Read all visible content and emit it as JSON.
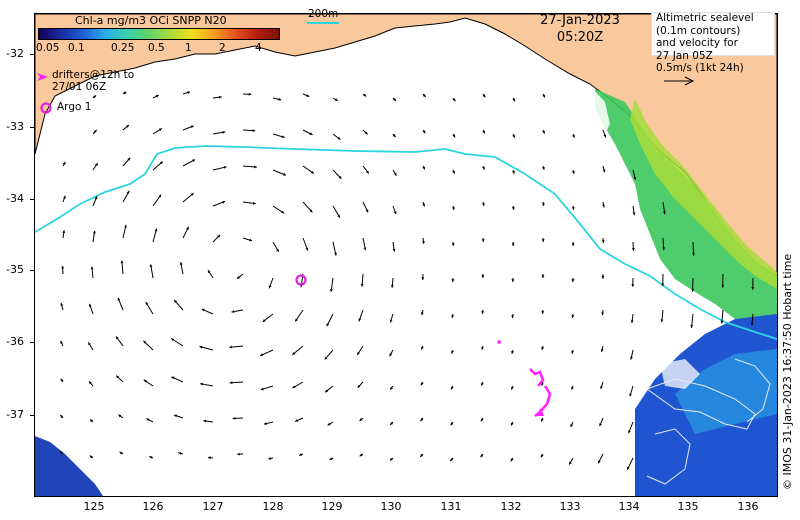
{
  "colorbar": {
    "title": "Chl-a mg/m3 OCi SNPP N20",
    "ticks": [
      "0.05",
      "0.1",
      "0.25",
      "0.5",
      "1",
      "2",
      "4"
    ]
  },
  "scale_label": "200m",
  "date": "27-Jan-2023",
  "time": "05:20Z",
  "legend": {
    "line1": "Altimetric sealevel",
    "line2": "(0.1m contours)",
    "line3": "and velocity for",
    "line4": "27 Jan 05Z",
    "line5": "0.5m/s (1kt 24h)"
  },
  "drifters_label_1": "drifters@12h to",
  "drifters_label_2": "27/01 06Z",
  "argo_label": "Argo 1",
  "credit": "© IMOS 31-Jan-2023 16:37:50 Hobart time",
  "y_axis": [
    "-32",
    "-33",
    "-34",
    "-35",
    "-36",
    "-37"
  ],
  "x_axis": [
    "125",
    "126",
    "127",
    "128",
    "129",
    "130",
    "131",
    "132",
    "133",
    "134",
    "135",
    "136"
  ],
  "colors": {
    "land": "#f9c89c",
    "bathy_200m": "#2bd5df",
    "drifter": "#ff22ff",
    "argo": "#e020e0"
  }
}
